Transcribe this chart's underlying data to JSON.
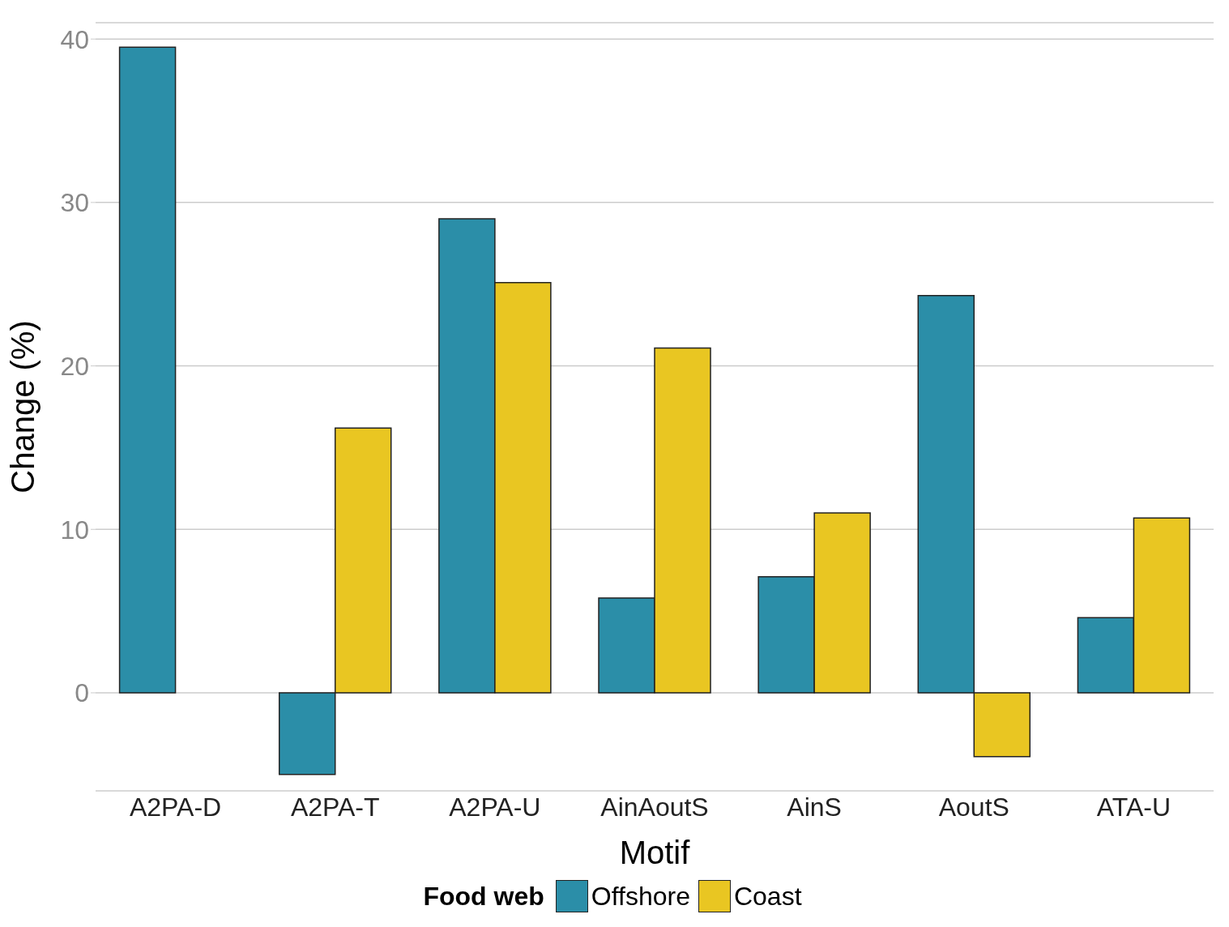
{
  "chart_data": {
    "type": "bar",
    "xlabel": "Motif",
    "ylabel": "Change (%)",
    "legend_title": "Food web",
    "categories": [
      "A2PA-D",
      "A2PA-T",
      "A2PA-U",
      "AinAoutS",
      "AinS",
      "AoutS",
      "ATA-U"
    ],
    "series": [
      {
        "name": "Offshore",
        "color": "#2b8ea8",
        "values": [
          39.5,
          -5,
          29,
          5.8,
          7.1,
          24.3,
          4.6
        ]
      },
      {
        "name": "Coast",
        "color": "#e9c622",
        "values": [
          null,
          16.2,
          25.1,
          21.1,
          11,
          -3.9,
          10.7
        ]
      }
    ],
    "ylim": [
      -6,
      41
    ],
    "yticks": [
      0,
      10,
      20,
      30,
      40
    ],
    "grid": "y",
    "legend": "bottom"
  }
}
